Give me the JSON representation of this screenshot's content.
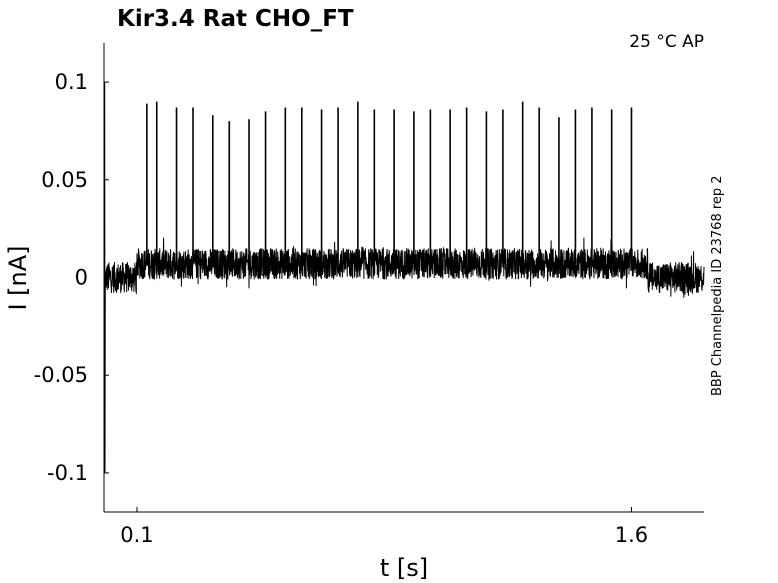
{
  "chart_data": {
    "type": "line",
    "title": "Kir3.4  Rat  CHO_FT",
    "condition_label": "25 °C  AP",
    "side_label": "BBP Channelpedia ID 23768 rep 2",
    "xlabel": "t [s]",
    "ylabel": "I [nA]",
    "xlim": [
      0.0,
      1.82
    ],
    "ylim": [
      -0.12,
      0.12
    ],
    "x_ticks": [
      0.1,
      1.6
    ],
    "x_tick_labels": [
      "0.1",
      "1.6"
    ],
    "y_ticks": [
      0.1,
      0.05,
      0,
      -0.05,
      -0.1
    ],
    "y_tick_labels": [
      "0.1",
      "0.05",
      "0",
      "-0.05",
      "-0.1"
    ],
    "grid": false,
    "series": [
      {
        "trace_description_values": {
          "baseline_before_stim_nA": 0.0,
          "baseline_during_stim_nA": 0.007,
          "baseline_after_stim_nA": 0.0,
          "noise_amplitude_nA": 0.008,
          "stimulus_window_s": [
            0.1,
            1.65
          ],
          "initial_transient_nA": [
            0.1,
            -0.1
          ],
          "spike_times_s": [
            0.13,
            0.16,
            0.22,
            0.27,
            0.33,
            0.38,
            0.44,
            0.49,
            0.55,
            0.6,
            0.66,
            0.71,
            0.77,
            0.82,
            0.88,
            0.94,
            0.99,
            1.05,
            1.1,
            1.16,
            1.21,
            1.27,
            1.32,
            1.38,
            1.43,
            1.48,
            1.54,
            1.6
          ],
          "spike_peaks_nA": [
            0.089,
            0.09,
            0.087,
            0.087,
            0.083,
            0.08,
            0.081,
            0.085,
            0.087,
            0.087,
            0.086,
            0.087,
            0.09,
            0.086,
            0.086,
            0.085,
            0.086,
            0.086,
            0.087,
            0.085,
            0.086,
            0.09,
            0.087,
            0.082,
            0.086,
            0.087,
            0.086,
            0.087
          ]
        }
      }
    ]
  }
}
